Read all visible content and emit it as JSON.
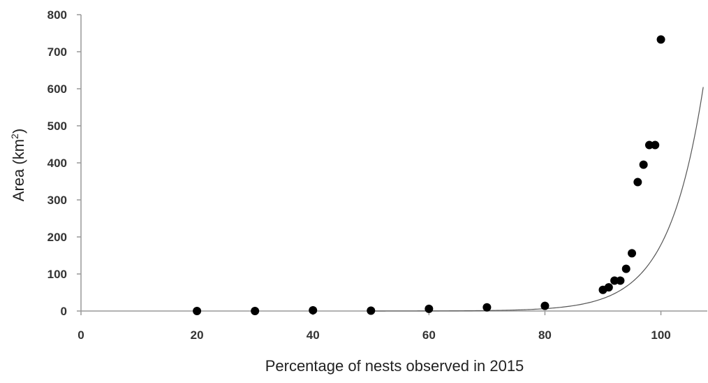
{
  "chart_data": {
    "type": "scatter",
    "title": "",
    "xlabel": "Percentage of nests observed in 2015",
    "ylabel_main": "Area (km",
    "ylabel_sup": "2",
    "ylabel_end": ")",
    "xlim": [
      0,
      108
    ],
    "ylim": [
      0,
      800
    ],
    "x_ticks": [
      0,
      20,
      40,
      60,
      80,
      100
    ],
    "y_ticks": [
      0,
      100,
      200,
      300,
      400,
      500,
      600,
      700,
      800
    ],
    "grid": false,
    "legend": "none",
    "series": [
      {
        "type": "scatter",
        "points": [
          {
            "x": 20,
            "y": 0
          },
          {
            "x": 30,
            "y": 0
          },
          {
            "x": 40,
            "y": 2
          },
          {
            "x": 50,
            "y": 1
          },
          {
            "x": 60,
            "y": 6
          },
          {
            "x": 70,
            "y": 10
          },
          {
            "x": 80,
            "y": 14
          },
          {
            "x": 90,
            "y": 57
          },
          {
            "x": 91,
            "y": 64
          },
          {
            "x": 92,
            "y": 82
          },
          {
            "x": 93,
            "y": 82
          },
          {
            "x": 94,
            "y": 114
          },
          {
            "x": 95,
            "y": 156
          },
          {
            "x": 96,
            "y": 348
          },
          {
            "x": 97,
            "y": 395
          },
          {
            "x": 98,
            "y": 448
          },
          {
            "x": 99,
            "y": 448
          },
          {
            "x": 100,
            "y": 733
          }
        ]
      },
      {
        "type": "line",
        "fit": "exponential",
        "a": 1.02e-05,
        "b": 0.1668,
        "x_range": [
          50,
          107.3
        ]
      }
    ],
    "colors": {
      "marker": "#000000",
      "fit_line": "#555555",
      "axis": "#999999",
      "text": "#333333"
    }
  }
}
